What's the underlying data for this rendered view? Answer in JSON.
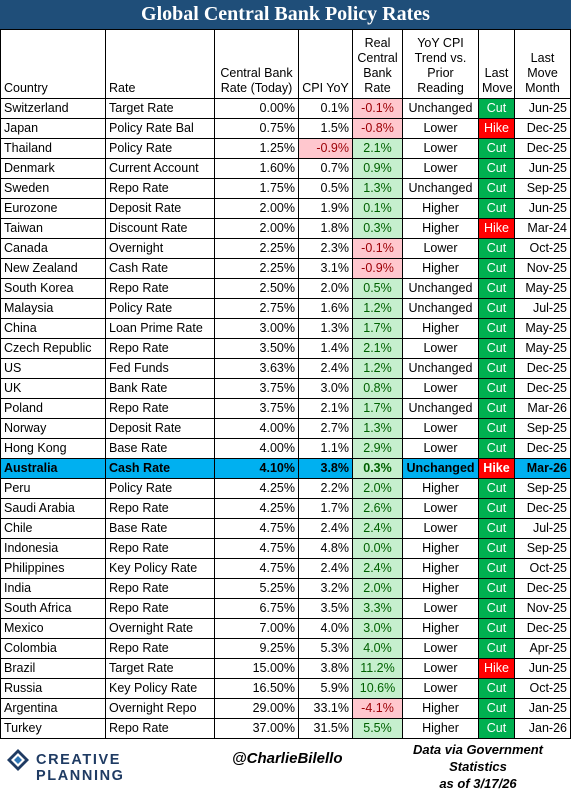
{
  "title": "Global Central Bank Policy Rates",
  "columns": {
    "country": "Country",
    "rate": "Rate",
    "cb_rate": "Central Bank Rate (Today)",
    "cpi": "CPI YoY",
    "real": "Real Central Bank Rate",
    "trend": "YoY CPI Trend vs. Prior Reading",
    "last_move": "Last Move",
    "last_move_month": "Last Move Month"
  },
  "colors": {
    "header_bg": "#1f4e79",
    "highlight_row": "#00b0f0",
    "positive_fill": "#c6efce",
    "negative_fill": "#ffc7ce",
    "cut": "#00b050",
    "hike": "#ff0000"
  },
  "rows": [
    {
      "country": "Switzerland",
      "rate": "Target Rate",
      "cb_rate": "0.00%",
      "cpi": "0.1%",
      "real": "-0.1%",
      "trend": "Unchanged",
      "move": "Cut",
      "month": "Jun-25"
    },
    {
      "country": "Japan",
      "rate": "Policy Rate Bal",
      "cb_rate": "0.75%",
      "cpi": "1.5%",
      "real": "-0.8%",
      "trend": "Lower",
      "move": "Hike",
      "month": "Dec-25"
    },
    {
      "country": "Thailand",
      "rate": "Policy Rate",
      "cb_rate": "1.25%",
      "cpi": "-0.9%",
      "real": "2.1%",
      "trend": "Lower",
      "move": "Cut",
      "month": "Dec-25"
    },
    {
      "country": "Denmark",
      "rate": "Current Account",
      "cb_rate": "1.60%",
      "cpi": "0.7%",
      "real": "0.9%",
      "trend": "Lower",
      "move": "Cut",
      "month": "Jun-25"
    },
    {
      "country": "Sweden",
      "rate": "Repo Rate",
      "cb_rate": "1.75%",
      "cpi": "0.5%",
      "real": "1.3%",
      "trend": "Unchanged",
      "move": "Cut",
      "month": "Sep-25"
    },
    {
      "country": "Eurozone",
      "rate": "Deposit Rate",
      "cb_rate": "2.00%",
      "cpi": "1.9%",
      "real": "0.1%",
      "trend": "Higher",
      "move": "Cut",
      "month": "Jun-25"
    },
    {
      "country": "Taiwan",
      "rate": "Discount Rate",
      "cb_rate": "2.00%",
      "cpi": "1.8%",
      "real": "0.3%",
      "trend": "Higher",
      "move": "Hike",
      "month": "Mar-24"
    },
    {
      "country": "Canada",
      "rate": "Overnight",
      "cb_rate": "2.25%",
      "cpi": "2.3%",
      "real": "-0.1%",
      "trend": "Lower",
      "move": "Cut",
      "month": "Oct-25"
    },
    {
      "country": "New Zealand",
      "rate": "Cash Rate",
      "cb_rate": "2.25%",
      "cpi": "3.1%",
      "real": "-0.9%",
      "trend": "Higher",
      "move": "Cut",
      "month": "Nov-25"
    },
    {
      "country": "South Korea",
      "rate": "Repo Rate",
      "cb_rate": "2.50%",
      "cpi": "2.0%",
      "real": "0.5%",
      "trend": "Unchanged",
      "move": "Cut",
      "month": "May-25"
    },
    {
      "country": "Malaysia",
      "rate": "Policy Rate",
      "cb_rate": "2.75%",
      "cpi": "1.6%",
      "real": "1.2%",
      "trend": "Unchanged",
      "move": "Cut",
      "month": "Jul-25"
    },
    {
      "country": "China",
      "rate": "Loan Prime Rate",
      "cb_rate": "3.00%",
      "cpi": "1.3%",
      "real": "1.7%",
      "trend": "Higher",
      "move": "Cut",
      "month": "May-25"
    },
    {
      "country": "Czech Republic",
      "rate": "Repo Rate",
      "cb_rate": "3.50%",
      "cpi": "1.4%",
      "real": "2.1%",
      "trend": "Lower",
      "move": "Cut",
      "month": "May-25"
    },
    {
      "country": "US",
      "rate": "Fed Funds",
      "cb_rate": "3.63%",
      "cpi": "2.4%",
      "real": "1.2%",
      "trend": "Unchanged",
      "move": "Cut",
      "month": "Dec-25"
    },
    {
      "country": "UK",
      "rate": "Bank Rate",
      "cb_rate": "3.75%",
      "cpi": "3.0%",
      "real": "0.8%",
      "trend": "Lower",
      "move": "Cut",
      "month": "Dec-25"
    },
    {
      "country": "Poland",
      "rate": "Repo Rate",
      "cb_rate": "3.75%",
      "cpi": "2.1%",
      "real": "1.7%",
      "trend": "Unchanged",
      "move": "Cut",
      "month": "Mar-26"
    },
    {
      "country": "Norway",
      "rate": "Deposit Rate",
      "cb_rate": "4.00%",
      "cpi": "2.7%",
      "real": "1.3%",
      "trend": "Lower",
      "move": "Cut",
      "month": "Sep-25"
    },
    {
      "country": "Hong Kong",
      "rate": "Base Rate",
      "cb_rate": "4.00%",
      "cpi": "1.1%",
      "real": "2.9%",
      "trend": "Lower",
      "move": "Cut",
      "month": "Dec-25"
    },
    {
      "country": "Australia",
      "rate": "Cash Rate",
      "cb_rate": "4.10%",
      "cpi": "3.8%",
      "real": "0.3%",
      "trend": "Unchanged",
      "move": "Hike",
      "month": "Mar-26",
      "highlight": true
    },
    {
      "country": "Peru",
      "rate": "Policy Rate",
      "cb_rate": "4.25%",
      "cpi": "2.2%",
      "real": "2.0%",
      "trend": "Higher",
      "move": "Cut",
      "month": "Sep-25"
    },
    {
      "country": "Saudi Arabia",
      "rate": "Repo Rate",
      "cb_rate": "4.25%",
      "cpi": "1.7%",
      "real": "2.6%",
      "trend": "Lower",
      "move": "Cut",
      "month": "Dec-25"
    },
    {
      "country": "Chile",
      "rate": "Base Rate",
      "cb_rate": "4.75%",
      "cpi": "2.4%",
      "real": "2.4%",
      "trend": "Lower",
      "move": "Cut",
      "month": "Jul-25"
    },
    {
      "country": "Indonesia",
      "rate": "Repo Rate",
      "cb_rate": "4.75%",
      "cpi": "4.8%",
      "real": "0.0%",
      "trend": "Higher",
      "move": "Cut",
      "month": "Sep-25"
    },
    {
      "country": "Philippines",
      "rate": "Key Policy Rate",
      "cb_rate": "4.75%",
      "cpi": "2.4%",
      "real": "2.4%",
      "trend": "Higher",
      "move": "Cut",
      "month": "Oct-25"
    },
    {
      "country": "India",
      "rate": "Repo Rate",
      "cb_rate": "5.25%",
      "cpi": "3.2%",
      "real": "2.0%",
      "trend": "Higher",
      "move": "Cut",
      "month": "Dec-25"
    },
    {
      "country": "South Africa",
      "rate": "Repo Rate",
      "cb_rate": "6.75%",
      "cpi": "3.5%",
      "real": "3.3%",
      "trend": "Lower",
      "move": "Cut",
      "month": "Nov-25"
    },
    {
      "country": "Mexico",
      "rate": "Overnight Rate",
      "cb_rate": "7.00%",
      "cpi": "4.0%",
      "real": "3.0%",
      "trend": "Higher",
      "move": "Cut",
      "month": "Dec-25"
    },
    {
      "country": "Colombia",
      "rate": "Repo Rate",
      "cb_rate": "9.25%",
      "cpi": "5.3%",
      "real": "4.0%",
      "trend": "Lower",
      "move": "Cut",
      "month": "Apr-25"
    },
    {
      "country": "Brazil",
      "rate": "Target Rate",
      "cb_rate": "15.00%",
      "cpi": "3.8%",
      "real": "11.2%",
      "trend": "Lower",
      "move": "Hike",
      "month": "Jun-25"
    },
    {
      "country": "Russia",
      "rate": "Key Policy Rate",
      "cb_rate": "16.50%",
      "cpi": "5.9%",
      "real": "10.6%",
      "trend": "Lower",
      "move": "Cut",
      "month": "Oct-25"
    },
    {
      "country": "Argentina",
      "rate": "Overnight Repo",
      "cb_rate": "29.00%",
      "cpi": "33.1%",
      "real": "-4.1%",
      "trend": "Higher",
      "move": "Cut",
      "month": "Jan-25"
    },
    {
      "country": "Turkey",
      "rate": "Repo Rate",
      "cb_rate": "37.00%",
      "cpi": "31.5%",
      "real": "5.5%",
      "trend": "Higher",
      "move": "Cut",
      "month": "Jan-26"
    }
  ],
  "footer": {
    "brand": "CREATIVE PLANNING",
    "handle": "@CharlieBilello",
    "source_line1": "Data via Government Statistics",
    "source_line2": "as of 3/17/26"
  }
}
